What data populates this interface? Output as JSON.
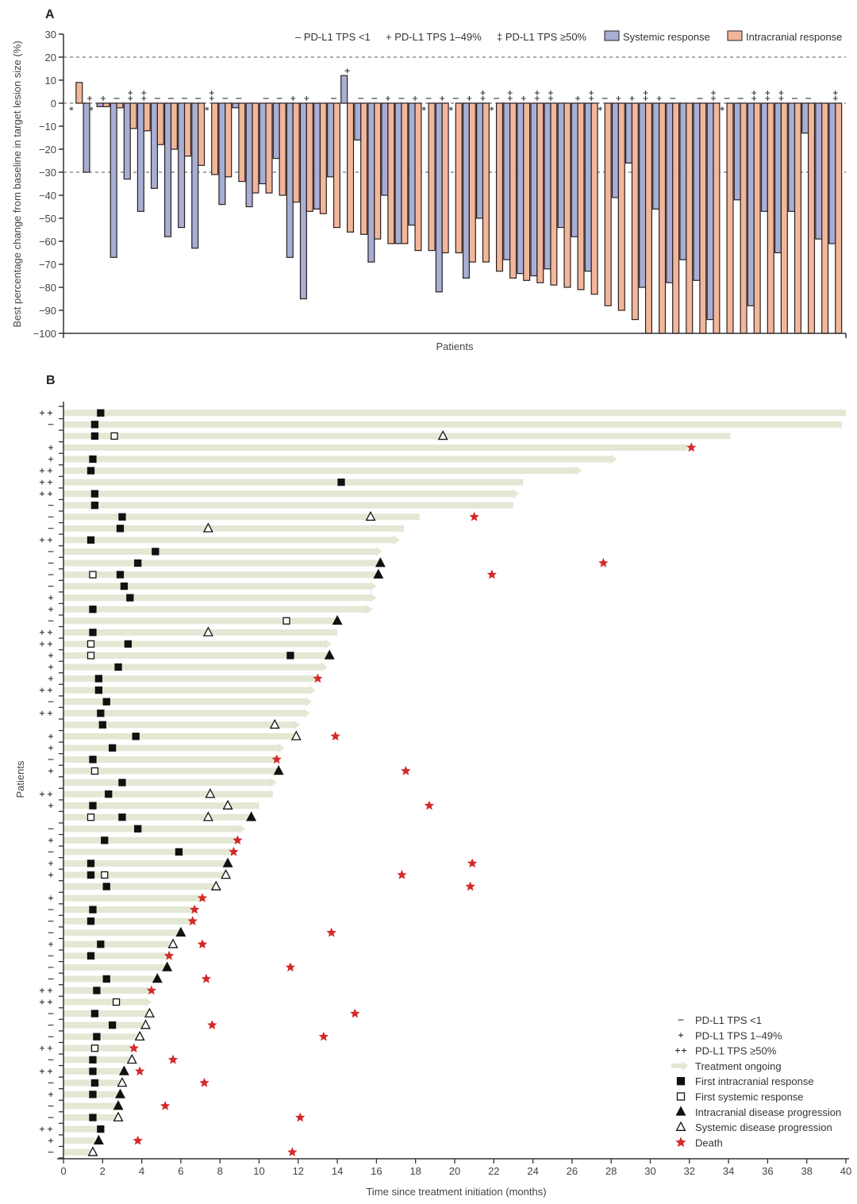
{
  "chart_data": [
    {
      "panel": "A",
      "type": "bar",
      "title": "",
      "xlabel": "Patients",
      "ylabel": "Best percentage change from baseline in target lesion size (%)",
      "ylim": [
        -100,
        30
      ],
      "yticks": [
        30,
        20,
        10,
        0,
        -10,
        -20,
        -30,
        -40,
        -50,
        -60,
        -70,
        -80,
        -90,
        -100
      ],
      "reference_lines": [
        20,
        0,
        -30
      ],
      "legend": {
        "placement": "top-right",
        "tps_entries": [
          {
            "symbol": "–",
            "label": "PD-L1 TPS <1"
          },
          {
            "symbol": "+",
            "label": "PD-L1 TPS 1–49%"
          },
          {
            "symbol": "‡",
            "label": "PD-L1 TPS ≥50%"
          }
        ],
        "series_entries": [
          {
            "name": "Systemic response",
            "color": "#a8aed4"
          },
          {
            "name": "Intracranial response",
            "color": "#f2b79a"
          }
        ]
      },
      "series_names": [
        "Systemic response",
        "Intracranial response"
      ],
      "not_evaluable_marker": "*",
      "patients": [
        {
          "tps": "",
          "systemic": null,
          "intracranial": 9
        },
        {
          "tps": "+",
          "systemic": -30,
          "intracranial": null
        },
        {
          "tps": "+",
          "systemic": -1.5,
          "intracranial": -1.5
        },
        {
          "tps": "–",
          "systemic": -67,
          "intracranial": -2
        },
        {
          "tps": "++",
          "systemic": -33,
          "intracranial": -11
        },
        {
          "tps": "++",
          "systemic": -47,
          "intracranial": -12
        },
        {
          "tps": "–",
          "systemic": -37,
          "intracranial": -18
        },
        {
          "tps": "–",
          "systemic": -58,
          "intracranial": -20
        },
        {
          "tps": "–",
          "systemic": -54,
          "intracranial": -23
        },
        {
          "tps": "–",
          "systemic": -63,
          "intracranial": -27
        },
        {
          "tps": "++",
          "systemic": null,
          "intracranial": -31
        },
        {
          "tps": "–",
          "systemic": -44,
          "intracranial": -32
        },
        {
          "tps": "–",
          "systemic": -2,
          "intracranial": -34
        },
        {
          "tps": "",
          "systemic": -45,
          "intracranial": -39
        },
        {
          "tps": "–",
          "systemic": -35,
          "intracranial": -39
        },
        {
          "tps": "–",
          "systemic": -24,
          "intracranial": -40
        },
        {
          "tps": "+",
          "systemic": -67,
          "intracranial": -43
        },
        {
          "tps": "+",
          "systemic": -85,
          "intracranial": -47
        },
        {
          "tps": "",
          "systemic": -46,
          "intracranial": -48
        },
        {
          "tps": "–",
          "systemic": -32,
          "intracranial": -54
        },
        {
          "tps": "+",
          "systemic": 12,
          "intracranial": -56
        },
        {
          "tps": "–",
          "systemic": -16,
          "intracranial": -57
        },
        {
          "tps": "–",
          "systemic": -69,
          "intracranial": -59
        },
        {
          "tps": "+",
          "systemic": -40,
          "intracranial": -61
        },
        {
          "tps": "–",
          "systemic": -61,
          "intracranial": -61
        },
        {
          "tps": "+",
          "systemic": -53,
          "intracranial": -64
        },
        {
          "tps": "–",
          "systemic": null,
          "intracranial": -64
        },
        {
          "tps": "+",
          "systemic": -82,
          "intracranial": -65
        },
        {
          "tps": "–",
          "systemic": null,
          "intracranial": -65
        },
        {
          "tps": "+",
          "systemic": -76,
          "intracranial": -69
        },
        {
          "tps": "++",
          "systemic": -50,
          "intracranial": -69
        },
        {
          "tps": "–",
          "systemic": null,
          "intracranial": -73
        },
        {
          "tps": "++",
          "systemic": -68,
          "intracranial": -76
        },
        {
          "tps": "+",
          "systemic": -74,
          "intracranial": -77
        },
        {
          "tps": "++",
          "systemic": -75,
          "intracranial": -78
        },
        {
          "tps": "++",
          "systemic": -72,
          "intracranial": -79
        },
        {
          "tps": "",
          "systemic": -54,
          "intracranial": -80
        },
        {
          "tps": "+",
          "systemic": -58,
          "intracranial": -81
        },
        {
          "tps": "++",
          "systemic": -73,
          "intracranial": -83
        },
        {
          "tps": "–",
          "systemic": null,
          "intracranial": -88
        },
        {
          "tps": "+",
          "systemic": -41,
          "intracranial": -90
        },
        {
          "tps": "+",
          "systemic": -26,
          "intracranial": -94
        },
        {
          "tps": "++",
          "systemic": -80,
          "intracranial": -100
        },
        {
          "tps": "+",
          "systemic": -46,
          "intracranial": -100
        },
        {
          "tps": "–",
          "systemic": -78,
          "intracranial": -100
        },
        {
          "tps": "",
          "systemic": -68,
          "intracranial": -100
        },
        {
          "tps": "–",
          "systemic": -77,
          "intracranial": -100
        },
        {
          "tps": "++",
          "systemic": -94,
          "intracranial": -100
        },
        {
          "tps": "–",
          "systemic": null,
          "intracranial": -100
        },
        {
          "tps": "–",
          "systemic": -42,
          "intracranial": -100
        },
        {
          "tps": "++",
          "systemic": -88,
          "intracranial": -100
        },
        {
          "tps": "++",
          "systemic": -47,
          "intracranial": -100
        },
        {
          "tps": "++",
          "systemic": -65,
          "intracranial": -100
        },
        {
          "tps": "–",
          "systemic": -47,
          "intracranial": -100
        },
        {
          "tps": "–",
          "systemic": -13,
          "intracranial": -100
        },
        {
          "tps": "",
          "systemic": -59,
          "intracranial": -100
        },
        {
          "tps": "++",
          "systemic": -61,
          "intracranial": -100
        }
      ]
    },
    {
      "panel": "B",
      "type": "swimmer",
      "xlabel": "Time since treatment initiation (months)",
      "ylabel": "Patients",
      "xlim": [
        0,
        40
      ],
      "xticks": [
        0,
        2,
        4,
        6,
        8,
        10,
        12,
        14,
        16,
        18,
        20,
        22,
        24,
        26,
        28,
        30,
        32,
        34,
        36,
        38,
        40
      ],
      "legend": {
        "placement": "bottom-right",
        "entries": [
          {
            "symbol": "–",
            "label": "PD-L1 TPS <1"
          },
          {
            "symbol": "+",
            "label": "PD-L1 TPS 1–49%"
          },
          {
            "symbol": "++",
            "label": "PD-L1 TPS ≥50%"
          },
          {
            "symbol": "arrow",
            "label": "Treatment ongoing"
          },
          {
            "symbol": "filled-square",
            "label": "First intracranial response"
          },
          {
            "symbol": "open-square",
            "label": "First systemic response"
          },
          {
            "symbol": "filled-triangle",
            "label": "Intracranial disease progression"
          },
          {
            "symbol": "open-triangle",
            "label": "Systemic disease progression"
          },
          {
            "symbol": "star",
            "label": "Death"
          }
        ]
      },
      "colors": {
        "bar": "#e3e8d4",
        "death": "#d42a2a",
        "marker": "#111111"
      },
      "patients": [
        {
          "tps": "++",
          "duration": 40.0,
          "ongoing": false,
          "ic_resp": 1.9
        },
        {
          "tps": "–",
          "duration": 39.8,
          "ongoing": false,
          "ic_resp": 1.6
        },
        {
          "tps": "",
          "duration": 34.1,
          "ongoing": false,
          "ic_resp": 1.6,
          "sys_resp": 2.6,
          "sys_prog": 19.4
        },
        {
          "tps": "+",
          "duration": 31.9,
          "ongoing": false,
          "death": 32.1
        },
        {
          "tps": "+",
          "duration": 28.3,
          "ongoing": true,
          "ic_resp": 1.5
        },
        {
          "tps": "++",
          "duration": 26.5,
          "ongoing": true,
          "ic_resp": 1.4
        },
        {
          "tps": "++",
          "duration": 23.5,
          "ongoing": false,
          "ic_resp": 14.2
        },
        {
          "tps": "++",
          "duration": 23.3,
          "ongoing": true,
          "ic_resp": 1.6
        },
        {
          "tps": "–",
          "duration": 23.0,
          "ongoing": false,
          "ic_resp": 1.6
        },
        {
          "tps": "–",
          "duration": 18.2,
          "ongoing": false,
          "ic_resp": 3.0,
          "sys_prog": 15.7,
          "death": 21.0
        },
        {
          "tps": "–",
          "duration": 17.4,
          "ongoing": false,
          "ic_resp": 2.9,
          "sys_prog": 7.4
        },
        {
          "tps": "++",
          "duration": 17.2,
          "ongoing": true,
          "ic_resp": 1.4
        },
        {
          "tps": "–",
          "duration": 16.3,
          "ongoing": true,
          "ic_resp": 4.7
        },
        {
          "tps": "–",
          "duration": 16.2,
          "ongoing": false,
          "ic_resp": 3.8,
          "ic_prog": 16.2,
          "death": 27.6
        },
        {
          "tps": "–",
          "duration": 16.1,
          "ongoing": false,
          "sys_resp": 1.5,
          "ic_resp": 2.9,
          "ic_prog": 16.1,
          "death": 21.9
        },
        {
          "tps": "–",
          "duration": 16.0,
          "ongoing": true,
          "ic_resp": 3.1
        },
        {
          "tps": "+",
          "duration": 16.0,
          "ongoing": true,
          "ic_resp": 3.4
        },
        {
          "tps": "+",
          "duration": 15.8,
          "ongoing": true,
          "ic_resp": 1.5
        },
        {
          "tps": "–",
          "duration": 14.0,
          "ongoing": false,
          "sys_resp": 11.4,
          "ic_prog": 14.0
        },
        {
          "tps": "++",
          "duration": 14.0,
          "ongoing": false,
          "ic_resp": 1.5,
          "sys_prog": 7.4
        },
        {
          "tps": "++",
          "duration": 13.7,
          "ongoing": true,
          "sys_resp": 1.4,
          "ic_resp": 3.3
        },
        {
          "tps": "+",
          "duration": 13.6,
          "ongoing": false,
          "sys_resp": 1.4,
          "ic_resp": 11.6,
          "ic_prog": 13.6
        },
        {
          "tps": "+",
          "duration": 13.5,
          "ongoing": true,
          "ic_resp": 2.8
        },
        {
          "tps": "+",
          "duration": 12.9,
          "ongoing": false,
          "ic_resp": 1.8,
          "death": 13.0
        },
        {
          "tps": "++",
          "duration": 12.9,
          "ongoing": true,
          "ic_resp": 1.8
        },
        {
          "tps": "–",
          "duration": 12.7,
          "ongoing": true,
          "ic_resp": 2.2
        },
        {
          "tps": "++",
          "duration": 12.6,
          "ongoing": true,
          "ic_resp": 1.9
        },
        {
          "tps": "",
          "duration": 12.1,
          "ongoing": true,
          "ic_resp": 2.0,
          "sys_prog": 10.8
        },
        {
          "tps": "+",
          "duration": 11.8,
          "ongoing": false,
          "ic_resp": 3.7,
          "sys_prog": 11.9,
          "death": 13.9
        },
        {
          "tps": "+",
          "duration": 11.3,
          "ongoing": true,
          "ic_resp": 2.5
        },
        {
          "tps": "–",
          "duration": 10.9,
          "ongoing": false,
          "ic_resp": 1.5,
          "death": 10.9
        },
        {
          "tps": "+",
          "duration": 11.0,
          "ongoing": false,
          "sys_resp": 1.6,
          "ic_prog": 11.0,
          "death": 17.5
        },
        {
          "tps": "",
          "duration": 10.9,
          "ongoing": true,
          "ic_resp": 3.0
        },
        {
          "tps": "++",
          "duration": 10.7,
          "ongoing": false,
          "ic_resp": 2.3,
          "sys_prog": 7.5
        },
        {
          "tps": "+",
          "duration": 10.0,
          "ongoing": false,
          "ic_resp": 1.5,
          "sys_prog": 8.4,
          "death": 18.7
        },
        {
          "tps": "",
          "duration": 9.6,
          "ongoing": false,
          "sys_resp": 1.4,
          "ic_resp": 3.0,
          "sys_prog": 7.4,
          "ic_prog": 9.6
        },
        {
          "tps": "–",
          "duration": 9.3,
          "ongoing": true,
          "ic_resp": 3.8
        },
        {
          "tps": "+",
          "duration": 8.9,
          "ongoing": false,
          "ic_resp": 2.1,
          "death": 8.9
        },
        {
          "tps": "–",
          "duration": 8.7,
          "ongoing": false,
          "ic_resp": 5.9,
          "death": 8.7
        },
        {
          "tps": "+",
          "duration": 8.3,
          "ongoing": false,
          "ic_resp": 1.4,
          "ic_prog": 8.4,
          "death": 20.9
        },
        {
          "tps": "+",
          "duration": 8.3,
          "ongoing": false,
          "ic_resp": 1.4,
          "sys_resp": 2.1,
          "sys_prog": 8.3,
          "death": 17.3
        },
        {
          "tps": "",
          "duration": 7.8,
          "ongoing": false,
          "ic_resp": 2.2,
          "sys_prog": 7.8,
          "death": 20.8
        },
        {
          "tps": "+",
          "duration": 7.1,
          "ongoing": false,
          "death": 7.1
        },
        {
          "tps": "–",
          "duration": 6.7,
          "ongoing": false,
          "ic_resp": 1.5,
          "death": 6.7
        },
        {
          "tps": "–",
          "duration": 6.6,
          "ongoing": false,
          "ic_resp": 1.4,
          "death": 6.6
        },
        {
          "tps": "–",
          "duration": 5.9,
          "ongoing": false,
          "ic_prog": 6.0,
          "death": 13.7
        },
        {
          "tps": "+",
          "duration": 5.6,
          "ongoing": false,
          "ic_resp": 1.9,
          "sys_prog": 5.6,
          "death": 7.1
        },
        {
          "tps": "–",
          "duration": 5.3,
          "ongoing": false,
          "ic_resp": 1.4,
          "death": 5.4
        },
        {
          "tps": "–",
          "duration": 5.3,
          "ongoing": false,
          "ic_prog": 5.3,
          "death": 11.6
        },
        {
          "tps": "–",
          "duration": 4.7,
          "ongoing": false,
          "ic_resp": 2.2,
          "ic_prog": 4.8,
          "death": 7.3
        },
        {
          "tps": "++",
          "duration": 4.4,
          "ongoing": false,
          "ic_resp": 1.7,
          "death": 4.5
        },
        {
          "tps": "++",
          "duration": 4.5,
          "ongoing": true,
          "sys_resp": 2.7
        },
        {
          "tps": "–",
          "duration": 4.3,
          "ongoing": false,
          "ic_resp": 1.6,
          "sys_prog": 4.4,
          "death": 14.9
        },
        {
          "tps": "–",
          "duration": 4.1,
          "ongoing": false,
          "ic_resp": 2.5,
          "sys_prog": 4.2,
          "death": 7.6
        },
        {
          "tps": "–",
          "duration": 3.9,
          "ongoing": false,
          "ic_resp": 1.7,
          "sys_prog": 3.9,
          "death": 13.3
        },
        {
          "tps": "++",
          "duration": 3.5,
          "ongoing": false,
          "sys_resp": 1.6,
          "death": 3.6
        },
        {
          "tps": "–",
          "duration": 3.4,
          "ongoing": false,
          "ic_resp": 1.5,
          "sys_prog": 3.5,
          "death": 5.6
        },
        {
          "tps": "++",
          "duration": 3.1,
          "ongoing": false,
          "ic_resp": 1.5,
          "ic_prog": 3.1,
          "death": 3.9
        },
        {
          "tps": "–",
          "duration": 3.0,
          "ongoing": false,
          "ic_resp": 1.6,
          "sys_prog": 3.0,
          "death": 7.2
        },
        {
          "tps": "+",
          "duration": 2.8,
          "ongoing": false,
          "ic_resp": 1.5,
          "ic_prog": 2.9
        },
        {
          "tps": "–",
          "duration": 2.7,
          "ongoing": false,
          "ic_prog": 2.8,
          "death": 5.2
        },
        {
          "tps": "–",
          "duration": 2.7,
          "ongoing": false,
          "ic_resp": 1.5,
          "sys_prog": 2.8,
          "death": 12.1
        },
        {
          "tps": "++",
          "duration": 1.8,
          "ongoing": false,
          "ic_resp": 1.9
        },
        {
          "tps": "+",
          "duration": 1.6,
          "ongoing": false,
          "ic_prog": 1.8,
          "death": 3.8
        },
        {
          "tps": "–",
          "duration": 1.4,
          "ongoing": false,
          "sys_prog": 1.5,
          "death": 11.7
        }
      ]
    }
  ],
  "labels": {
    "panel_a": "A",
    "panel_b": "B"
  }
}
